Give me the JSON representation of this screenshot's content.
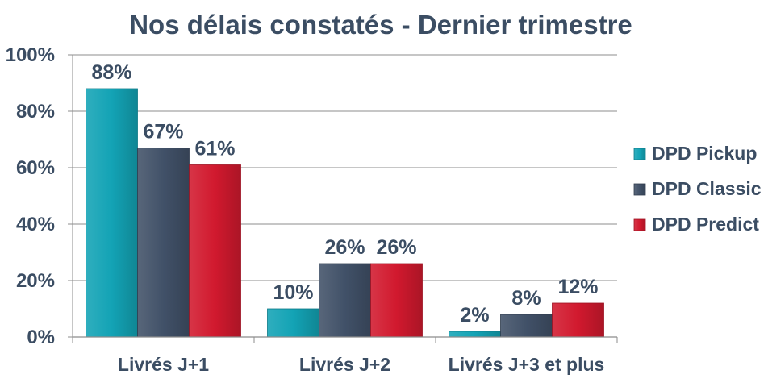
{
  "chart_data": {
    "type": "bar",
    "title": "Nos délais constatés - Dernier trimestre",
    "categories": [
      "Livrés J+1",
      "Livrés J+2",
      "Livrés J+3 et plus"
    ],
    "series": [
      {
        "name": "DPD Pickup",
        "values": [
          88,
          10,
          2
        ],
        "labels": [
          "88%",
          "10%",
          "2%"
        ],
        "color": "#13a3b5"
      },
      {
        "name": "DPD Classic",
        "values": [
          67,
          26,
          8
        ],
        "labels": [
          "67%",
          "26%",
          "8%"
        ],
        "color": "#415168"
      },
      {
        "name": "DPD Predict",
        "values": [
          61,
          26,
          12
        ],
        "labels": [
          "61%",
          "26%",
          "12%"
        ],
        "color": "#d1192e"
      }
    ],
    "yticks": [
      "0%",
      "20%",
      "40%",
      "60%",
      "80%",
      "100%"
    ],
    "ylim": [
      0,
      100
    ],
    "grid": true,
    "legend_position": "right",
    "colors": {
      "text": "#3b4d63",
      "grid": "#8c8c8c"
    }
  }
}
